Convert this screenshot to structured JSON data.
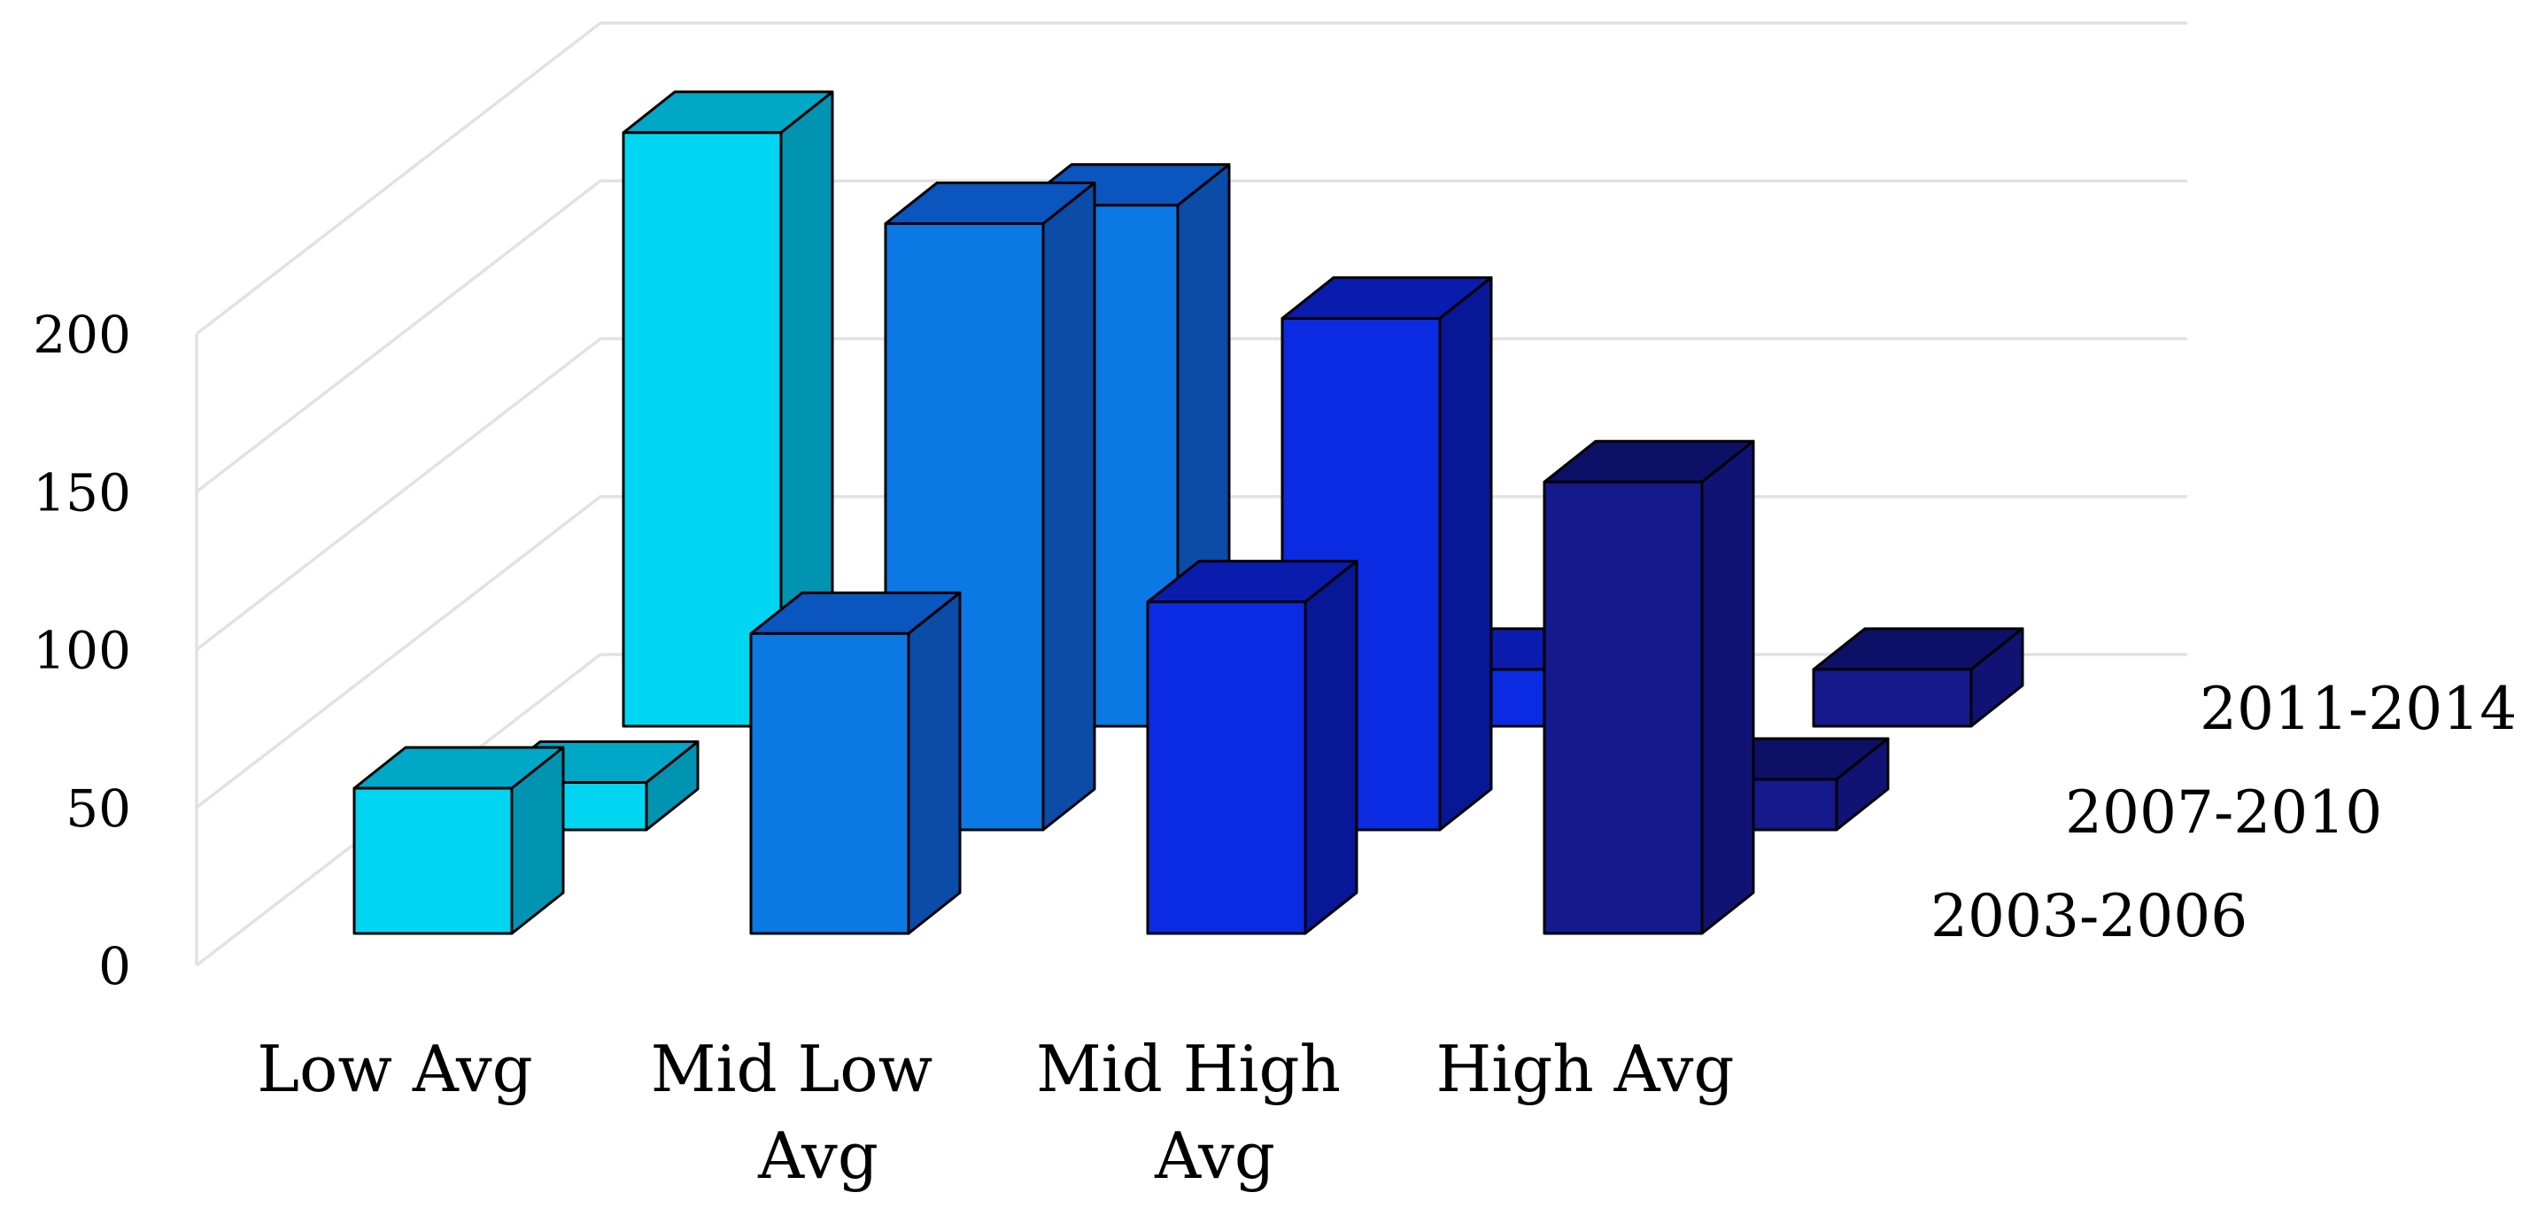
{
  "chart_data": {
    "type": "bar",
    "subtype": "3d-column-depth-series",
    "title": "",
    "xlabel": "",
    "ylabel": "",
    "categories": [
      "Low Avg",
      "Mid Low Avg",
      "Mid High Avg",
      "High Avg"
    ],
    "category_label_lines": [
      [
        "Low Avg"
      ],
      [
        "Mid Low",
        "Avg"
      ],
      [
        "Mid High",
        "Avg"
      ],
      [
        "High Avg"
      ]
    ],
    "series": [
      {
        "name": "2003-2006",
        "values": [
          46,
          95,
          105,
          143
        ]
      },
      {
        "name": "2007-2010",
        "values": [
          15,
          192,
          162,
          16
        ]
      },
      {
        "name": "2011-2014",
        "values": [
          188,
          165,
          18,
          18
        ]
      }
    ],
    "ylim": [
      0,
      200
    ],
    "yticks": [
      0,
      50,
      100,
      150,
      200
    ],
    "grid": true,
    "legend_position": "right-depth-labels",
    "colors": {
      "Low Avg": {
        "front": "#00D6F2",
        "top": "#00A8C8",
        "side": "#0094B2"
      },
      "Mid Low Avg": {
        "front": "#0B78E3",
        "top": "#0A55BE",
        "side": "#0A4CA8"
      },
      "Mid High Avg": {
        "front": "#0B2BE2",
        "top": "#0A1CAE",
        "side": "#081795"
      },
      "High Avg": {
        "front": "#141A8C",
        "top": "#0C1066",
        "side": "#101374"
      }
    },
    "gridline_color": "#E2E2E2",
    "bar_edge_color": "#000000",
    "background_color": "#FFFFFF"
  }
}
